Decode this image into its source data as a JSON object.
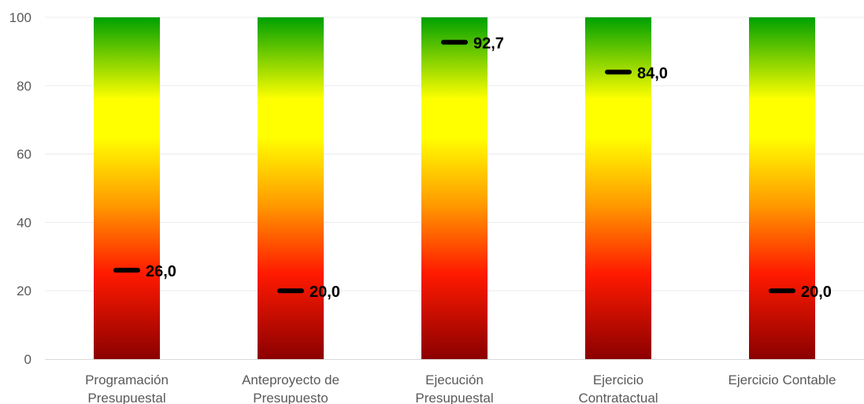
{
  "chart_data": {
    "type": "bar",
    "categories": [
      [
        "Programación",
        "Presupuestal"
      ],
      [
        "Anteproyecto de",
        "Presupuesto"
      ],
      [
        "Ejecución",
        "Presupuestal"
      ],
      [
        "Ejercicio",
        "Contratactual"
      ],
      [
        "Ejercicio Contable"
      ]
    ],
    "values": [
      26.0,
      20.0,
      92.7,
      84.0,
      20.0
    ],
    "value_labels": [
      "26,0",
      "20,0",
      "92,7",
      "84,0",
      "20,0"
    ],
    "ylim": [
      0,
      100
    ],
    "yticks": [
      0,
      20,
      40,
      60,
      80,
      100
    ],
    "ytick_labels": [
      "0",
      "20",
      "40",
      "60",
      "80",
      "100"
    ],
    "background_band": {
      "min": 0,
      "max": 100
    },
    "gradient_colors": {
      "top": "#00A000",
      "upper": "#FFFF00",
      "middle": "#FF9900",
      "lower": "#FF1A00",
      "bottom": "#8B0000"
    },
    "marker_color": "#000000",
    "grid": true,
    "legend": "none",
    "title": "",
    "xlabel": "",
    "ylabel": ""
  }
}
